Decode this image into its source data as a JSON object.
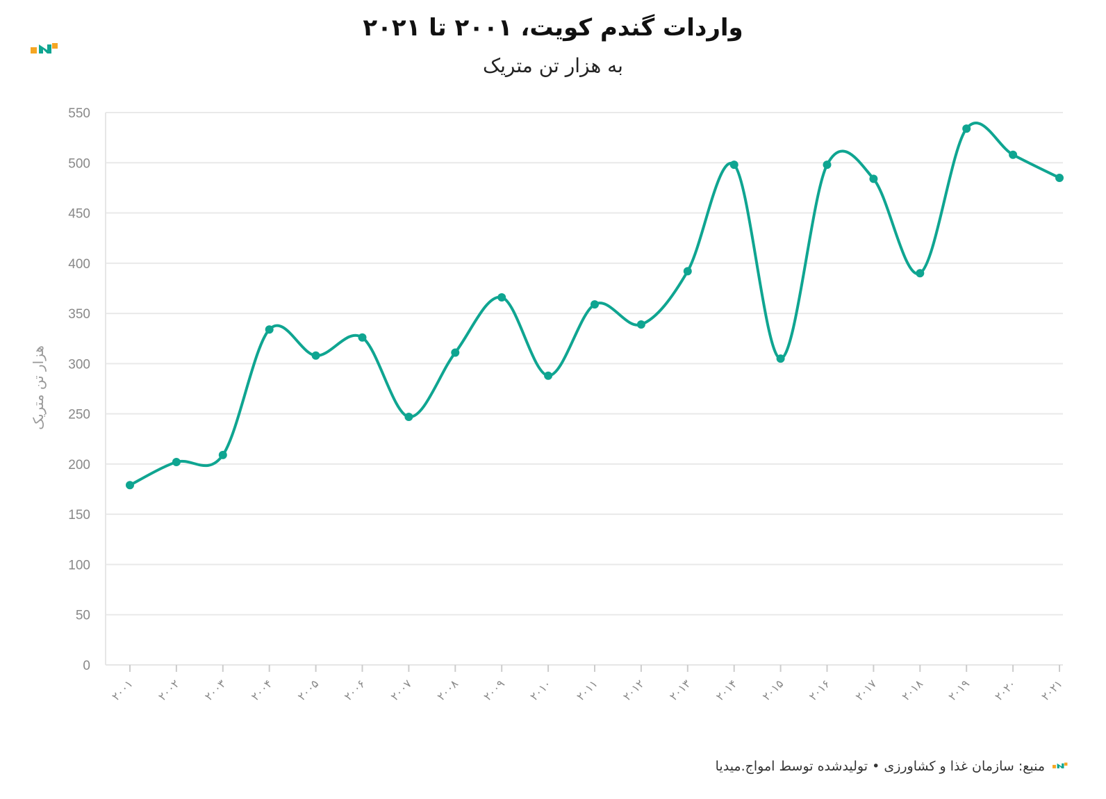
{
  "header": {
    "title": "واردات گندم کویت، ۲۰۰۱ تا ۲۰۲۱",
    "subtitle": "به هزار تن متریک"
  },
  "footer": {
    "source": "منبع: سازمان غذا و کشاورزی • تولیدشده توسط امواج.میدیا"
  },
  "colors": {
    "line": "#0fa591",
    "logo_orange": "#f5a623",
    "logo_teal": "#0fa591"
  },
  "icons": {
    "brand": "amwaj-logo-icon"
  },
  "chart_data": {
    "type": "line",
    "ylabel": "هزار تن متریک",
    "xlabel": "",
    "ylim": [
      0,
      550
    ],
    "yticks": [
      "0",
      "50",
      "100",
      "150",
      "200",
      "250",
      "300",
      "350",
      "400",
      "450",
      "500",
      "550"
    ],
    "grid": true,
    "categories": [
      "۲۰۰۱",
      "۲۰۰۲",
      "۲۰۰۳",
      "۲۰۰۴",
      "۲۰۰۵",
      "۲۰۰۶",
      "۲۰۰۷",
      "۲۰۰۸",
      "۲۰۰۹",
      "۲۰۱۰",
      "۲۰۱۱",
      "۲۰۱۲",
      "۲۰۱۳",
      "۲۰۱۴",
      "۲۰۱۵",
      "۲۰۱۶",
      "۲۰۱۷",
      "۲۰۱۸",
      "۲۰۱۹",
      "۲۰۲۰",
      "۲۰۲۱"
    ],
    "values": [
      179,
      202,
      209,
      334,
      308,
      326,
      247,
      311,
      366,
      288,
      359,
      339,
      392,
      498,
      305,
      498,
      484,
      390,
      534,
      508,
      485
    ]
  }
}
